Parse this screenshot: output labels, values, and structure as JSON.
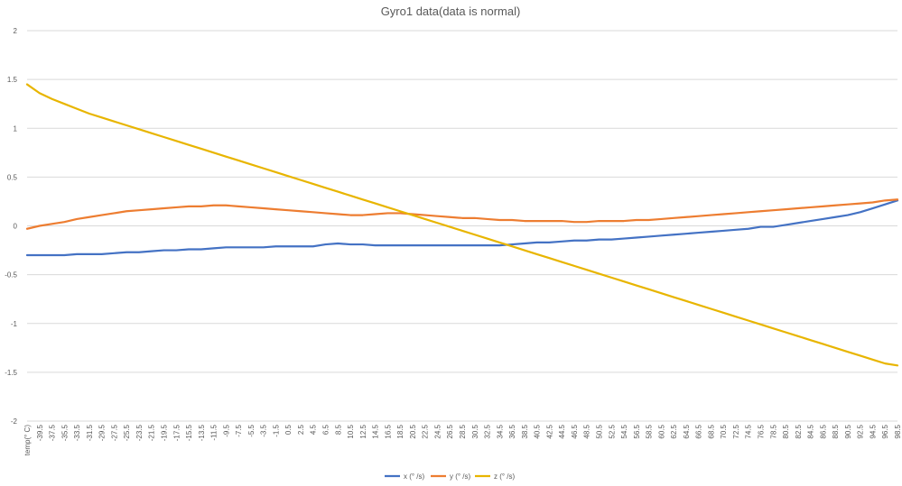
{
  "chart_data": {
    "type": "line",
    "title": "Gyro1 data(data is normal)",
    "xlabel": "",
    "ylabel": "",
    "ylim": [
      -2,
      2
    ],
    "yticks": [
      "2",
      "1.5",
      "1",
      "0.5",
      "0",
      "-0.5",
      "-1",
      "-1.5",
      "-2"
    ],
    "grid": true,
    "legend_position": "bottom",
    "categories": [
      "temp(° C)",
      "-39.5",
      "-37.5",
      "-35.5",
      "-33.5",
      "-31.5",
      "-29.5",
      "-27.5",
      "-25.5",
      "-23.5",
      "-21.5",
      "-19.5",
      "-17.5",
      "-15.5",
      "-13.5",
      "-11.5",
      "-9.5",
      "-7.5",
      "-5.5",
      "-3.5",
      "-1.5",
      "0.5",
      "2.5",
      "4.5",
      "6.5",
      "8.5",
      "10.5",
      "12.5",
      "14.5",
      "16.5",
      "18.5",
      "20.5",
      "22.5",
      "24.5",
      "26.5",
      "28.5",
      "30.5",
      "32.5",
      "34.5",
      "36.5",
      "38.5",
      "40.5",
      "42.5",
      "44.5",
      "46.5",
      "48.5",
      "50.5",
      "52.5",
      "54.5",
      "56.5",
      "58.5",
      "60.5",
      "62.5",
      "64.5",
      "66.5",
      "68.5",
      "70.5",
      "72.5",
      "74.5",
      "76.5",
      "78.5",
      "80.5",
      "82.5",
      "84.5",
      "86.5",
      "88.5",
      "90.5",
      "92.5",
      "94.5",
      "96.5",
      "98.5"
    ],
    "series": [
      {
        "name": "x (° /s)",
        "color": "#4472C4",
        "values": [
          -0.3,
          -0.3,
          -0.3,
          -0.3,
          -0.29,
          -0.29,
          -0.29,
          -0.28,
          -0.27,
          -0.27,
          -0.26,
          -0.25,
          -0.25,
          -0.24,
          -0.24,
          -0.23,
          -0.22,
          -0.22,
          -0.22,
          -0.22,
          -0.21,
          -0.21,
          -0.21,
          -0.21,
          -0.19,
          -0.18,
          -0.19,
          -0.19,
          -0.2,
          -0.2,
          -0.2,
          -0.2,
          -0.2,
          -0.2,
          -0.2,
          -0.2,
          -0.2,
          -0.2,
          -0.2,
          -0.19,
          -0.18,
          -0.17,
          -0.17,
          -0.16,
          -0.15,
          -0.15,
          -0.14,
          -0.14,
          -0.13,
          -0.12,
          -0.11,
          -0.1,
          -0.09,
          -0.08,
          -0.07,
          -0.06,
          -0.05,
          -0.04,
          -0.03,
          -0.01,
          -0.01,
          0.01,
          0.03,
          0.05,
          0.07,
          0.09,
          0.11,
          0.14,
          0.18,
          0.22,
          0.26
        ]
      },
      {
        "name": "y (° /s)",
        "color": "#ED7D31",
        "values": [
          -0.03,
          0.0,
          0.02,
          0.04,
          0.07,
          0.09,
          0.11,
          0.13,
          0.15,
          0.16,
          0.17,
          0.18,
          0.19,
          0.2,
          0.2,
          0.21,
          0.21,
          0.2,
          0.19,
          0.18,
          0.17,
          0.16,
          0.15,
          0.14,
          0.13,
          0.12,
          0.11,
          0.11,
          0.12,
          0.13,
          0.13,
          0.12,
          0.11,
          0.1,
          0.09,
          0.08,
          0.08,
          0.07,
          0.06,
          0.06,
          0.05,
          0.05,
          0.05,
          0.05,
          0.04,
          0.04,
          0.05,
          0.05,
          0.05,
          0.06,
          0.06,
          0.07,
          0.08,
          0.09,
          0.1,
          0.11,
          0.12,
          0.13,
          0.14,
          0.15,
          0.16,
          0.17,
          0.18,
          0.19,
          0.2,
          0.21,
          0.22,
          0.23,
          0.24,
          0.26,
          0.27
        ]
      },
      {
        "name": "z (° /s)",
        "color": "#E8B500",
        "values": [
          1.45,
          1.36,
          1.3,
          1.25,
          1.2,
          1.15,
          1.11,
          1.07,
          1.03,
          0.99,
          0.95,
          0.91,
          0.87,
          0.83,
          0.79,
          0.75,
          0.71,
          0.67,
          0.63,
          0.59,
          0.55,
          0.51,
          0.47,
          0.43,
          0.39,
          0.35,
          0.31,
          0.27,
          0.23,
          0.19,
          0.15,
          0.11,
          0.07,
          0.03,
          -0.01,
          -0.05,
          -0.09,
          -0.13,
          -0.17,
          -0.21,
          -0.25,
          -0.29,
          -0.33,
          -0.37,
          -0.41,
          -0.45,
          -0.49,
          -0.53,
          -0.57,
          -0.61,
          -0.65,
          -0.69,
          -0.73,
          -0.77,
          -0.81,
          -0.85,
          -0.89,
          -0.93,
          -0.97,
          -1.01,
          -1.05,
          -1.09,
          -1.13,
          -1.17,
          -1.21,
          -1.25,
          -1.29,
          -1.33,
          -1.37,
          -1.41,
          -1.43
        ]
      }
    ]
  }
}
